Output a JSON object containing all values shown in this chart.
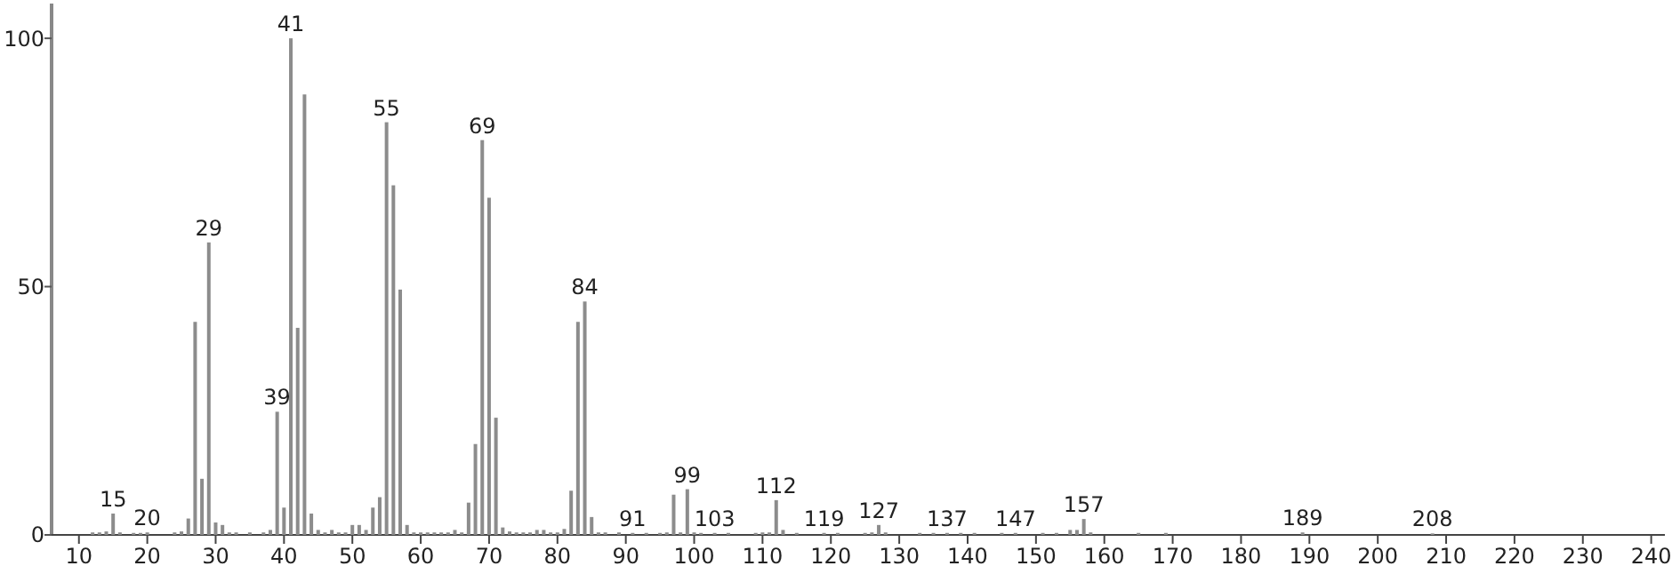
{
  "chart_data": {
    "type": "bar",
    "color": "#8c8c8c",
    "x": [
      12,
      13,
      14,
      15,
      16,
      18,
      19,
      20,
      24,
      25,
      26,
      27,
      28,
      29,
      30,
      31,
      32,
      33,
      35,
      37,
      38,
      39,
      40,
      41,
      42,
      43,
      44,
      45,
      46,
      47,
      48,
      49,
      50,
      51,
      52,
      53,
      54,
      55,
      56,
      57,
      58,
      59,
      60,
      61,
      62,
      63,
      64,
      65,
      66,
      67,
      68,
      69,
      70,
      71,
      72,
      73,
      74,
      75,
      76,
      77,
      78,
      79,
      80,
      81,
      82,
      83,
      84,
      85,
      86,
      87,
      89,
      91,
      93,
      95,
      96,
      97,
      98,
      99,
      100,
      101,
      103,
      105,
      109,
      110,
      111,
      112,
      113,
      115,
      119,
      121,
      125,
      126,
      127,
      128,
      133,
      135,
      137,
      139,
      141,
      145,
      147,
      151,
      153,
      155,
      156,
      157,
      158,
      165,
      169,
      189,
      208
    ],
    "values": [
      0.5,
      0.5,
      0.7,
      4.3,
      0.5,
      0.4,
      0.4,
      0.5,
      0.5,
      0.7,
      3.3,
      42.9,
      11.3,
      58.9,
      2.5,
      2,
      0.5,
      0.5,
      0.5,
      0.5,
      1,
      24.8,
      5.5,
      100,
      41.7,
      88.7,
      4.3,
      1,
      0.5,
      1,
      0.5,
      0.5,
      2,
      2,
      1,
      5.5,
      7.6,
      83.1,
      70.4,
      49.4,
      2,
      0.5,
      0.5,
      0.5,
      0.5,
      0.5,
      0.5,
      1,
      0.5,
      6.5,
      18.3,
      79.5,
      67.9,
      23.6,
      1.5,
      0.7,
      0.5,
      0.5,
      0.5,
      1,
      1,
      0.5,
      0.5,
      1.2,
      8.9,
      42.9,
      47,
      3.6,
      0.5,
      0.5,
      0.5,
      0.4,
      0.4,
      0.4,
      0.5,
      8.1,
      0.5,
      9.2,
      0.5,
      0.4,
      0.4,
      0.4,
      0.4,
      0.5,
      0.5,
      7,
      1,
      0.4,
      0.4,
      0.4,
      0.4,
      0.5,
      2,
      0.5,
      0.4,
      0.4,
      0.4,
      0.4,
      0.4,
      0.4,
      0.4,
      0.4,
      0.4,
      1,
      1,
      3.2,
      0.5,
      0.4,
      0.4,
      0.5,
      0.3
    ],
    "xlim": [
      6,
      242
    ],
    "xticks": [
      10,
      20,
      30,
      40,
      50,
      60,
      70,
      80,
      90,
      100,
      110,
      120,
      130,
      140,
      150,
      160,
      170,
      180,
      190,
      200,
      210,
      220,
      230,
      240
    ],
    "ylim": [
      0,
      107
    ],
    "yticks": [
      0,
      50,
      100
    ],
    "grid": false,
    "annotations": [
      {
        "text": "15",
        "x": 15,
        "y": 4.3
      },
      {
        "text": "20",
        "x": 20,
        "y": 0.5
      },
      {
        "text": "29",
        "x": 29,
        "y": 58.9
      },
      {
        "text": "39",
        "x": 39,
        "y": 24.8
      },
      {
        "text": "41",
        "x": 41,
        "y": 100
      },
      {
        "text": "55",
        "x": 55,
        "y": 83.1
      },
      {
        "text": "69",
        "x": 69,
        "y": 79.5
      },
      {
        "text": "84",
        "x": 84,
        "y": 47
      },
      {
        "text": "91",
        "x": 91,
        "y": 0.4
      },
      {
        "text": "99",
        "x": 99,
        "y": 9.2
      },
      {
        "text": "103",
        "x": 103,
        "y": 0.4
      },
      {
        "text": "112",
        "x": 112,
        "y": 7
      },
      {
        "text": "119",
        "x": 119,
        "y": 0.4
      },
      {
        "text": "127",
        "x": 127,
        "y": 2
      },
      {
        "text": "137",
        "x": 137,
        "y": 0.4
      },
      {
        "text": "147",
        "x": 147,
        "y": 0.4
      },
      {
        "text": "157",
        "x": 157,
        "y": 3.2
      },
      {
        "text": "189",
        "x": 189,
        "y": 0.5
      },
      {
        "text": "208",
        "x": 208,
        "y": 0.3
      }
    ]
  }
}
